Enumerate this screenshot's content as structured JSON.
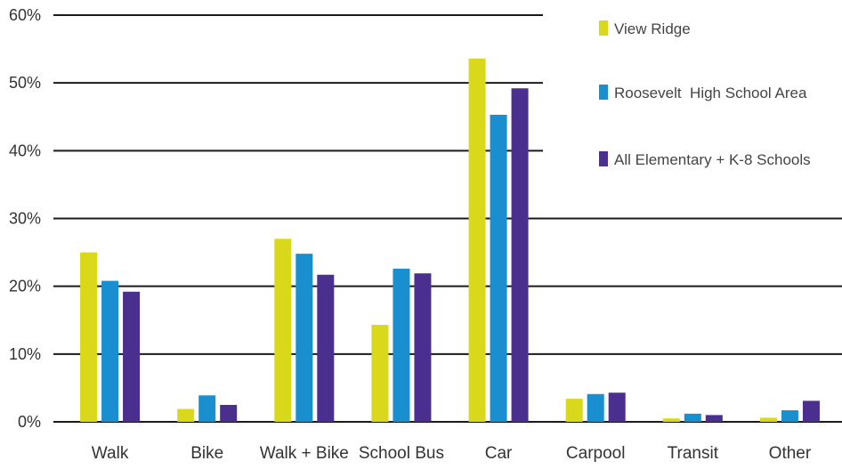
{
  "chart_data": {
    "type": "bar",
    "categories": [
      "Walk",
      "Bike",
      "Walk + Bike",
      "School Bus",
      "Car",
      "Carpool",
      "Transit",
      "Other"
    ],
    "series": [
      {
        "name": "View Ridge",
        "color": "#d9d81a",
        "values": [
          25.0,
          1.9,
          27.0,
          14.3,
          53.6,
          3.4,
          0.5,
          0.6
        ]
      },
      {
        "name": "Roosevelt  High School Area",
        "color": "#1a8fd0",
        "values": [
          20.8,
          3.9,
          24.8,
          22.6,
          45.3,
          4.1,
          1.2,
          1.7
        ]
      },
      {
        "name": "All Elementary + K-8 Schools",
        "color": "#4a2f8f",
        "values": [
          19.2,
          2.5,
          21.7,
          21.9,
          49.2,
          4.3,
          1.0,
          3.1
        ]
      }
    ],
    "yticks": [
      "0%",
      "10%",
      "20%",
      "30%",
      "40%",
      "50%",
      "60%"
    ],
    "ylim": [
      0,
      60
    ],
    "grid": true,
    "legend_position": "top-right",
    "title": "",
    "xlabel": "",
    "ylabel": ""
  }
}
